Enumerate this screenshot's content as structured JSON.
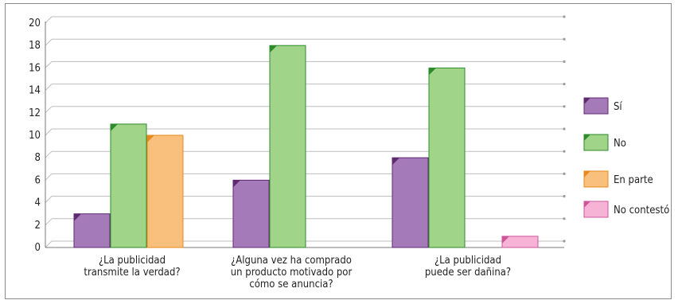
{
  "chart_data": {
    "type": "bar",
    "title": "",
    "xlabel": "",
    "ylabel": "",
    "ylim": [
      0,
      20
    ],
    "yticks": [
      0,
      2,
      4,
      6,
      8,
      10,
      12,
      14,
      16,
      18,
      20
    ],
    "grid": true,
    "legend_position": "right",
    "categories": [
      [
        "¿La publicidad",
        "transmite la verdad?"
      ],
      [
        "¿Alguna vez ha comprado",
        "un producto motivado por",
        "cómo se anuncia?"
      ],
      [
        "¿La publicidad",
        "puede ser dañina?"
      ]
    ],
    "series": [
      {
        "name": "Sí",
        "color": "#a57ab8",
        "values": [
          3,
          6,
          8
        ]
      },
      {
        "name": "No",
        "color": "#9fd489",
        "values": [
          11,
          18,
          16
        ]
      },
      {
        "name": "En parte",
        "color": "#f9bf7d",
        "values": [
          10,
          0,
          0
        ]
      },
      {
        "name": "No contestó",
        "color": "#f6b3d6",
        "values": [
          0,
          0,
          1
        ]
      }
    ],
    "accent_colors": {
      "Sí": "#5f2a6f",
      "No": "#2f8a2a",
      "En parte": "#e8891f",
      "No contestó": "#d0549b"
    }
  }
}
